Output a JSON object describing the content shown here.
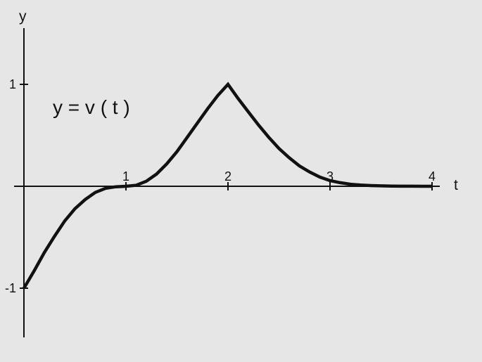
{
  "chart_data": {
    "type": "line",
    "curve_label": "y = v ( t )",
    "xlabel": "t",
    "ylabel": "y",
    "xlim": [
      0,
      4
    ],
    "ylim": [
      -1,
      1
    ],
    "x_ticks": [
      {
        "value": 1,
        "label": "1"
      },
      {
        "value": 2,
        "label": "2"
      },
      {
        "value": 3,
        "label": "3"
      },
      {
        "value": 4,
        "label": "4"
      }
    ],
    "y_ticks": [
      {
        "value": 1,
        "label": "1"
      },
      {
        "value": -1,
        "label": "-1"
      }
    ],
    "grid": false,
    "series": [
      {
        "x": [
          0,
          0.1,
          0.2,
          0.3,
          0.4,
          0.5,
          0.6,
          0.7,
          0.8,
          0.9,
          1.0,
          1.1,
          1.2,
          1.3,
          1.4,
          1.5,
          1.6,
          1.7,
          1.8,
          1.9,
          2.0,
          2.1,
          2.2,
          2.3,
          2.4,
          2.5,
          2.6,
          2.7,
          2.8,
          2.9,
          3.0,
          3.1,
          3.2,
          3.3,
          3.4,
          3.5,
          3.6,
          3.7,
          3.8,
          3.9,
          4.0
        ],
        "y": [
          -1,
          -0.83,
          -0.65,
          -0.49,
          -0.34,
          -0.22,
          -0.13,
          -0.06,
          -0.02,
          -0.005,
          0,
          0.01,
          0.05,
          0.12,
          0.22,
          0.34,
          0.48,
          0.62,
          0.76,
          0.89,
          1.0,
          0.86,
          0.73,
          0.6,
          0.48,
          0.37,
          0.28,
          0.2,
          0.14,
          0.09,
          0.055,
          0.035,
          0.02,
          0.012,
          0.007,
          0.004,
          0.002,
          0.001,
          0.0005,
          0.0002,
          0
        ]
      }
    ]
  }
}
